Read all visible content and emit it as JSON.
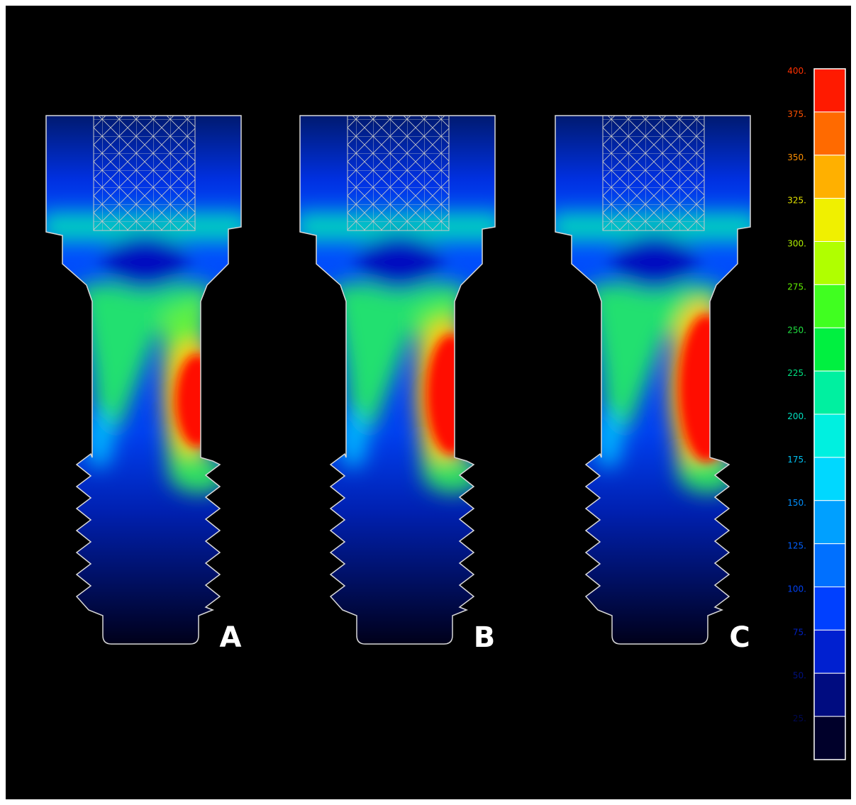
{
  "panels": [
    {
      "label": "A"
    },
    {
      "label": "B"
    },
    {
      "label": "C"
    }
  ],
  "colorbar": {
    "labels": [
      "400.",
      "375.",
      "350.",
      "325.",
      "300.",
      "275.",
      "250.",
      "225.",
      "200.",
      "175.",
      "150.",
      "125.",
      "100.",
      "75.",
      "50.",
      "25."
    ]
  }
}
